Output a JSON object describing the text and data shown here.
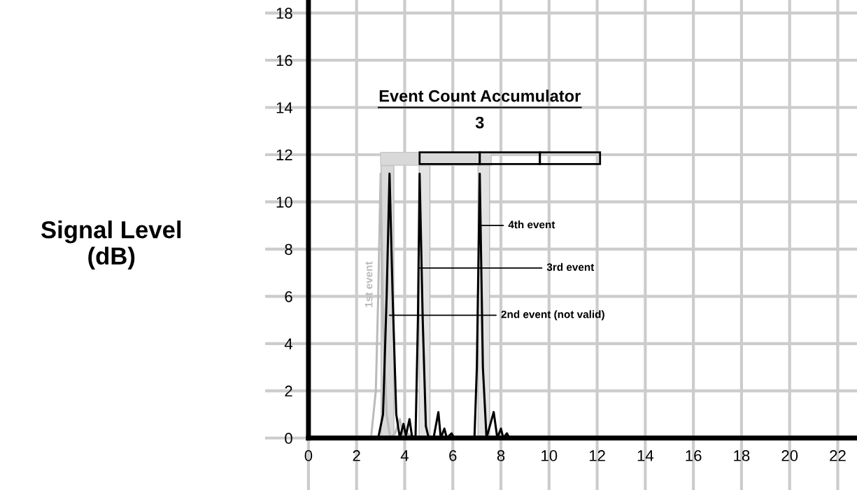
{
  "chart_data": {
    "type": "line",
    "title": "Event Count Accumulator",
    "ylabel": "Signal Level\n(dB)",
    "xlim": [
      -1.8,
      22.8
    ],
    "ylim": [
      -2.2,
      18.55
    ],
    "xticks": [
      0,
      2,
      4,
      6,
      8,
      10,
      12,
      14,
      16,
      18,
      20,
      22
    ],
    "yticks": [
      0,
      2,
      4,
      6,
      8,
      10,
      12,
      14,
      16,
      18
    ],
    "grid": true,
    "marker": "none",
    "line_style": "solid",
    "series": [
      {
        "name": "1st event",
        "color": "#bbbbbb",
        "x": [
          2.6,
          2.8,
          2.9,
          3.0,
          3.1,
          3.25,
          3.4,
          3.6,
          3.8,
          3.95,
          4.1,
          4.25,
          4.5
        ],
        "values": [
          0,
          2,
          6,
          11.2,
          5,
          1,
          0,
          0.2,
          0.8,
          0,
          0.2,
          0.1,
          0
        ]
      },
      {
        "color": "#000000",
        "x": [
          2.9,
          3.1,
          3.25,
          3.37,
          3.5,
          3.65,
          3.8,
          3.95,
          4.05,
          4.2,
          4.3,
          4.45,
          4.55,
          4.62,
          4.75,
          4.88,
          5.0,
          5.2,
          5.4,
          5.5,
          5.65,
          5.75,
          5.95,
          6.05,
          6.9,
          7.0,
          7.12,
          7.25,
          7.4,
          7.7,
          7.85,
          8.0,
          8.1,
          8.25,
          8.35
        ],
        "values": [
          0,
          1,
          6,
          11.2,
          6,
          1,
          0,
          0.6,
          0.1,
          0.8,
          0.1,
          0,
          5,
          11.2,
          5,
          0.5,
          0,
          0,
          1.1,
          0,
          0.4,
          0,
          0.2,
          0,
          0,
          3,
          11.2,
          3,
          0,
          1.1,
          0,
          0.4,
          0,
          0.2,
          0
        ]
      }
    ],
    "bands": [
      {
        "axis": "x",
        "from": 3.02,
        "to": 3.55,
        "color": "#d9d9d9"
      },
      {
        "axis": "x",
        "from": 4.6,
        "to": 5.05,
        "color": "#e3e3e3"
      },
      {
        "axis": "x",
        "from": 7.05,
        "to": 7.53,
        "color": "#e3e3e3"
      }
    ],
    "annotations": [
      "3",
      {
        "text": "4th event",
        "x": 7.12,
        "y": 9.0
      },
      {
        "text": "3rd event",
        "x": 4.62,
        "y": 7.2
      },
      {
        "text": "2nd event (not valid)",
        "x": 3.37,
        "y": 5.2
      }
    ]
  }
}
